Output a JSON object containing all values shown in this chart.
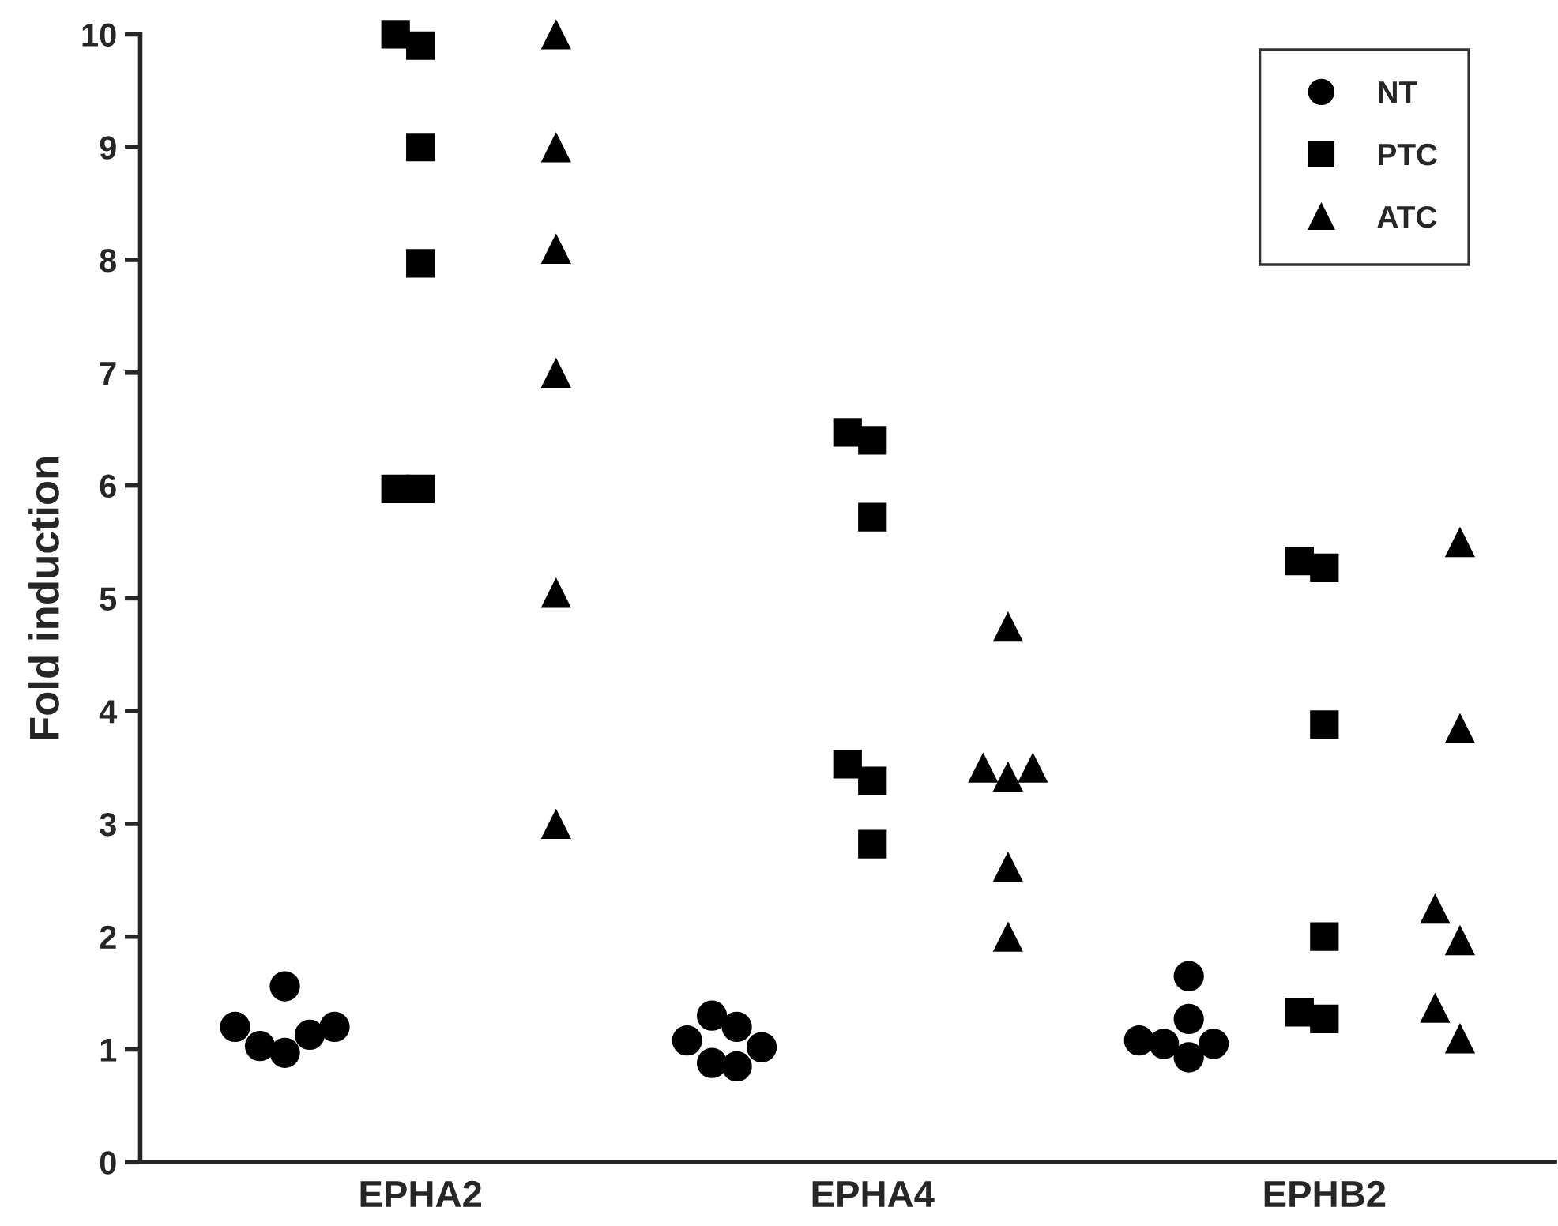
{
  "chart_data": {
    "type": "scatter",
    "ylabel": "Fold induction",
    "categories": [
      "EPHA2",
      "EPHA4",
      "EPHB2"
    ],
    "ylim": [
      0,
      10
    ],
    "yticks": [
      0,
      1,
      2,
      3,
      4,
      5,
      6,
      7,
      8,
      9,
      10
    ],
    "grid": false,
    "legend": "top right",
    "series": [
      {
        "name": "NT",
        "color": "#000000",
        "marker": "circle",
        "x": [
          "EPHA2",
          "EPHA2",
          "EPHA2",
          "EPHA2",
          "EPHA2",
          "EPHA2",
          "EPHA4",
          "EPHA4",
          "EPHA4",
          "EPHA4",
          "EPHA4",
          "EPHA4",
          "EPHB2",
          "EPHB2",
          "EPHB2",
          "EPHB2",
          "EPHB2",
          "EPHB2"
        ],
        "values": [
          1.13,
          1.2,
          1.03,
          1.2,
          0.97,
          1.56,
          0.88,
          1.3,
          1.08,
          0.85,
          1.02,
          1.2,
          1.05,
          0.93,
          1.27,
          1.65,
          1.08,
          1.05
        ]
      },
      {
        "name": "PTC",
        "color": "#000000",
        "marker": "square",
        "x": [
          "EPHA2",
          "EPHA2",
          "EPHA2",
          "EPHA2",
          "EPHA2",
          "EPHA2",
          "EPHA4",
          "EPHA4",
          "EPHA4",
          "EPHA4",
          "EPHA4",
          "EPHA4",
          "EPHB2",
          "EPHB2",
          "EPHB2",
          "EPHB2",
          "EPHB2",
          "EPHB2"
        ],
        "values": [
          10.0,
          9.9,
          9.0,
          7.97,
          5.97,
          5.97,
          6.47,
          6.4,
          5.72,
          3.53,
          3.38,
          2.82,
          5.33,
          5.27,
          3.88,
          2.0,
          1.33,
          1.27
        ]
      },
      {
        "name": "ATC",
        "color": "#000000",
        "marker": "triangle",
        "x": [
          "EPHA2",
          "EPHA2",
          "EPHA2",
          "EPHA2",
          "EPHA2",
          "EPHA2",
          "EPHA4",
          "EPHA4",
          "EPHA4",
          "EPHA4",
          "EPHA4",
          "EPHA4",
          "EPHB2",
          "EPHB2",
          "EPHB2",
          "EPHB2",
          "EPHB2",
          "EPHB2"
        ],
        "values": [
          10.0,
          9.0,
          8.1,
          7.0,
          5.05,
          3.0,
          4.75,
          3.5,
          3.42,
          3.5,
          2.62,
          2.0,
          5.5,
          3.85,
          2.25,
          1.97,
          1.37,
          1.1
        ]
      }
    ]
  }
}
